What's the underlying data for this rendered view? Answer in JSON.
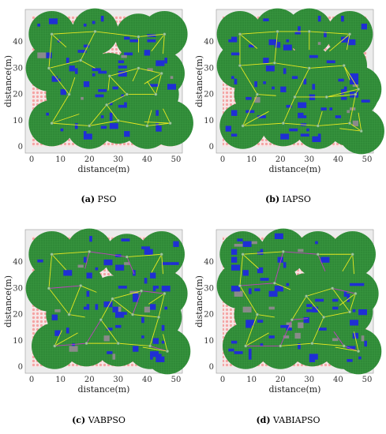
{
  "figure": {
    "panels": [
      {
        "id": "a",
        "caption_letter": "(a)",
        "caption_text": "PSO"
      },
      {
        "id": "b",
        "caption_letter": "(b)",
        "caption_text": "IAPSO"
      },
      {
        "id": "c",
        "caption_letter": "(c)",
        "caption_text": "VABPSO"
      },
      {
        "id": "d",
        "caption_letter": "(d)",
        "caption_text": "VABIAPSO"
      }
    ]
  },
  "colors": {
    "background_fill": "#f3dede",
    "grid_point": "#f4a3a3",
    "plot_frame_bg": "#ececec",
    "covered": "#2f8a37",
    "covered_grid": "#55b35a",
    "overlap": "#1f2fd4",
    "gap_gray": "#8a8a8a",
    "voronoi_edge": "#e8e820",
    "voronoi_edge_secondary": "#c040c0",
    "sensor_node": "#9acb9a"
  },
  "chart_data": [
    {
      "type": "scatter",
      "title": "(a) PSO",
      "xlabel": "distance(m)",
      "ylabel": "distance(m)",
      "xlim": [
        0,
        50
      ],
      "ylim": [
        0,
        50
      ],
      "xticks": [
        0,
        10,
        20,
        30,
        40,
        50
      ],
      "yticks": [
        0,
        10,
        20,
        30,
        40
      ],
      "series": [
        {
          "name": "",
          "x": [
            7,
            22,
            37,
            46,
            6,
            17,
            27,
            37,
            45,
            13,
            26,
            33,
            43,
            7,
            20,
            30,
            40,
            48
          ],
          "y": [
            43,
            44,
            42,
            43,
            30,
            33,
            27,
            30,
            28,
            20,
            16,
            20,
            20,
            9,
            8,
            10,
            8,
            9
          ]
        }
      ]
    },
    {
      "type": "scatter",
      "title": "(b) IAPSO",
      "xlabel": "distance(m)",
      "ylabel": "distance(m)",
      "xlim": [
        0,
        50
      ],
      "ylim": [
        0,
        50
      ],
      "xticks": [
        0,
        10,
        20,
        30,
        40,
        50
      ],
      "yticks": [
        0,
        10,
        20,
        30,
        40
      ],
      "series": [
        {
          "name": "",
          "x": [
            6,
            19,
            30,
            44,
            6,
            18,
            30,
            42,
            47,
            12,
            25,
            36,
            46,
            7,
            21,
            33,
            44,
            48
          ],
          "y": [
            43,
            44,
            44,
            43,
            31,
            32,
            30,
            31,
            22,
            20,
            19,
            19,
            20,
            8,
            9,
            8,
            9,
            6
          ]
        }
      ]
    },
    {
      "type": "scatter",
      "title": "(c) VABPSO",
      "xlabel": "distance(m)",
      "ylabel": "distance(m)",
      "xlim": [
        0,
        50
      ],
      "ylim": [
        0,
        50
      ],
      "xticks": [
        0,
        10,
        20,
        30,
        40,
        50
      ],
      "yticks": [
        0,
        10,
        20,
        30,
        40
      ],
      "series": [
        {
          "name": "",
          "x": [
            7,
            20,
            33,
            45,
            6,
            17,
            28,
            38,
            46,
            13,
            24,
            35,
            44,
            8,
            19,
            30,
            41,
            47
          ],
          "y": [
            43,
            44,
            42,
            43,
            30,
            31,
            26,
            29,
            28,
            20,
            18,
            20,
            19,
            8,
            9,
            9,
            8,
            6
          ]
        }
      ]
    },
    {
      "type": "scatter",
      "title": "(d) VABIAPSO",
      "xlabel": "distance(m)",
      "ylabel": "distance(m)",
      "xlim": [
        0,
        50
      ],
      "ylim": [
        0,
        50
      ],
      "xticks": [
        0,
        10,
        20,
        30,
        40,
        50
      ],
      "yticks": [
        0,
        10,
        20,
        30,
        40
      ],
      "series": [
        {
          "name": "",
          "x": [
            7,
            21,
            33,
            45,
            6,
            18,
            29,
            38,
            46,
            12,
            24,
            35,
            44,
            8,
            20,
            31,
            42,
            47
          ],
          "y": [
            43,
            44,
            43,
            43,
            31,
            32,
            27,
            30,
            28,
            20,
            18,
            19,
            21,
            8,
            8,
            9,
            8,
            6
          ]
        }
      ]
    }
  ]
}
